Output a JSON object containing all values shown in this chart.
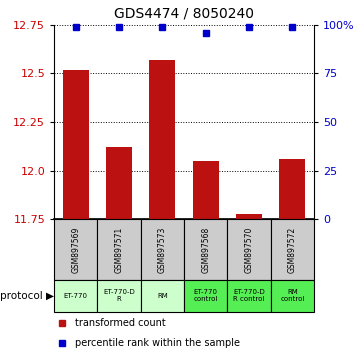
{
  "title": "GDS4474 / 8050240",
  "samples": [
    "GSM897569",
    "GSM897571",
    "GSM897573",
    "GSM897568",
    "GSM897570",
    "GSM897572"
  ],
  "red_values": [
    12.52,
    12.12,
    12.57,
    12.05,
    11.78,
    12.06
  ],
  "blue_values": [
    99,
    99,
    99,
    96,
    99,
    99
  ],
  "ylim_left": [
    11.75,
    12.75
  ],
  "ylim_right": [
    0,
    100
  ],
  "yticks_left": [
    11.75,
    12.0,
    12.25,
    12.5,
    12.75
  ],
  "yticks_right": [
    0,
    25,
    50,
    75,
    100
  ],
  "protocols": [
    "ET-770",
    "ET-770-D\nR",
    "RM",
    "ET-770\ncontrol",
    "ET-770-D\nR control",
    "RM\ncontrol"
  ],
  "protocol_colors_light": "#ccffcc",
  "protocol_colors_dark": "#55ee55",
  "sample_bg_color": "#cccccc",
  "bar_color": "#bb1111",
  "dot_color": "#0000cc",
  "legend_red": "transformed count",
  "legend_blue": "percentile rank within the sample",
  "ylabel_left_color": "#cc0000",
  "ylabel_right_color": "#0000cc",
  "title_fontsize": 10,
  "bar_width": 0.6
}
